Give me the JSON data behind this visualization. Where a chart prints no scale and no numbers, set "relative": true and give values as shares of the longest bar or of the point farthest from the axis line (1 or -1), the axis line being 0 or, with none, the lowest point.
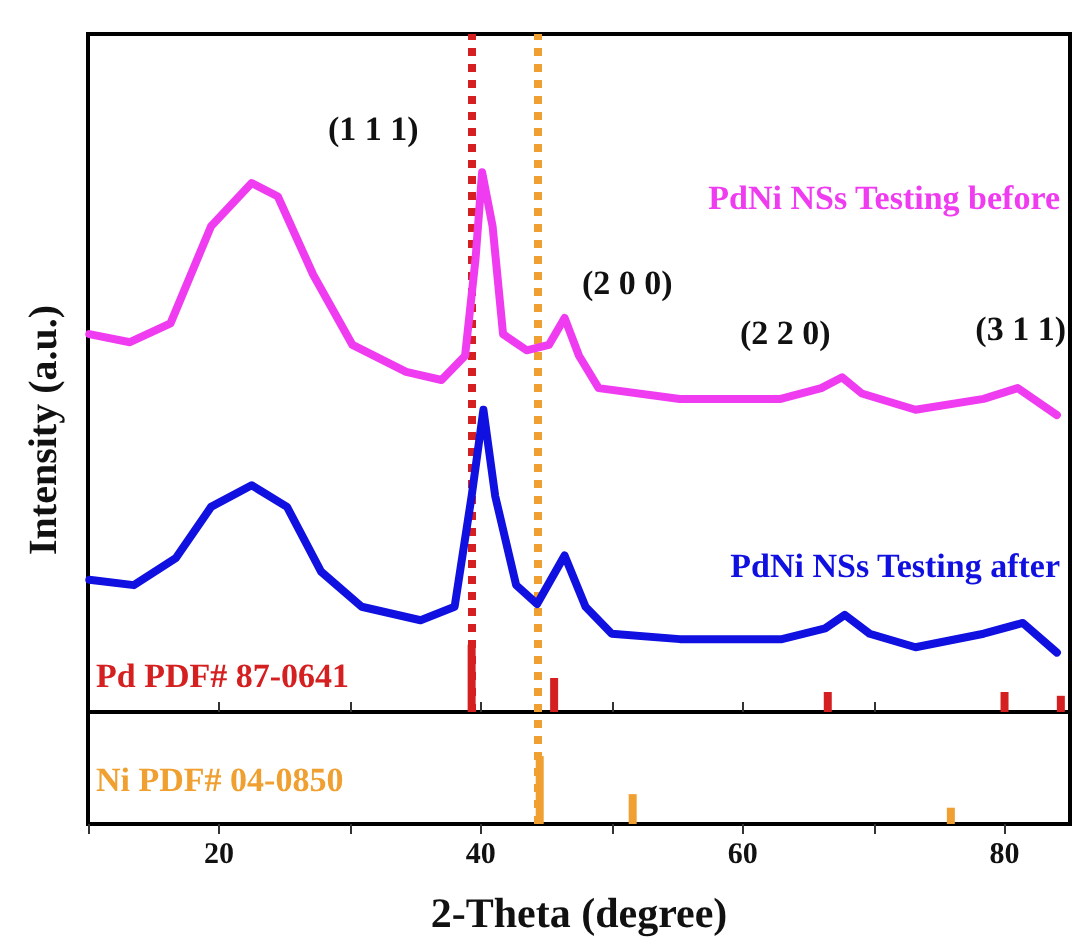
{
  "chart_data": [
    {
      "type": "line",
      "relative": true,
      "ylabel": "Intensity (a.u.)",
      "xlim": [
        10,
        85
      ],
      "xticks": [
        {
          "value": 20,
          "label": null
        },
        {
          "value": 30,
          "label": null
        },
        {
          "value": 40,
          "label": null
        },
        {
          "value": 50,
          "label": null
        },
        {
          "value": 60,
          "label": null
        },
        {
          "value": 70,
          "label": null
        },
        {
          "value": 80,
          "label": null
        }
      ],
      "tick_labels": false,
      "line_style": "solid",
      "annotations": [
        "(1 1 1)",
        "(2 0 0)",
        "(2 2 0)",
        "(3 1 1)"
      ],
      "ref_lines": [
        {
          "axis": "x",
          "value": 39.3,
          "color": "#d42020",
          "line_style": "dotted"
        },
        {
          "axis": "x",
          "value": 44.4,
          "color": "#f0a030",
          "line_style": "dotted"
        }
      ],
      "series": [
        {
          "name": "PdNi NSs Testing before",
          "color": "#f03cf0",
          "x": [
            10.1,
            13.2,
            16.3,
            19.4,
            22.5,
            24.5,
            27.2,
            30.2,
            34.3,
            37.0,
            38.8,
            39.6,
            40.1,
            40.9,
            41.7,
            43.5,
            45.2,
            46.4,
            47.5,
            49.0,
            55.2,
            62.9,
            66.0,
            67.6,
            69.1,
            73.2,
            78.4,
            81.0,
            84.0
          ],
          "values": [
            0.7,
            0.685,
            0.72,
            0.9,
            0.98,
            0.955,
            0.81,
            0.68,
            0.63,
            0.615,
            0.66,
            0.84,
            1.0,
            0.9,
            0.7,
            0.67,
            0.68,
            0.73,
            0.66,
            0.6,
            0.58,
            0.58,
            0.6,
            0.62,
            0.59,
            0.56,
            0.58,
            0.6,
            0.55
          ]
        },
        {
          "name": "PdNi NSs Testing after",
          "color": "#1010e0",
          "x": [
            10.1,
            13.5,
            16.7,
            19.4,
            22.5,
            25.2,
            27.8,
            30.9,
            35.4,
            38.0,
            39.3,
            40.2,
            41.1,
            42.7,
            44.3,
            46.4,
            48.0,
            50.0,
            55.2,
            63.0,
            66.3,
            67.8,
            69.7,
            73.2,
            78.4,
            81.4,
            84.0
          ],
          "values": [
            0.245,
            0.235,
            0.285,
            0.38,
            0.42,
            0.38,
            0.26,
            0.195,
            0.17,
            0.195,
            0.4,
            0.56,
            0.4,
            0.235,
            0.2,
            0.29,
            0.195,
            0.145,
            0.135,
            0.135,
            0.155,
            0.18,
            0.145,
            0.12,
            0.145,
            0.165,
            0.11
          ]
        },
        {
          "type": "bar",
          "name": "Pd PDF# 87-0641",
          "color": "#d42020",
          "x": [
            39.3,
            45.6,
            66.5,
            80.0,
            84.3
          ],
          "values": [
            0.125,
            0.063,
            0.037,
            0.037,
            0.03
          ]
        }
      ]
    },
    {
      "type": "bar",
      "relative": true,
      "xlabel": "2-Theta (degree)",
      "xlim": [
        10,
        85
      ],
      "xticks": [
        {
          "value": 10,
          "label": null
        },
        20,
        {
          "value": 30,
          "label": null
        },
        40,
        {
          "value": 50,
          "label": null
        },
        60,
        {
          "value": 70,
          "label": null
        },
        80
      ],
      "tick_labels": "x",
      "ref_lines": [
        {
          "axis": "x",
          "value": 44.4,
          "color": "#f0a030",
          "line_style": "dotted"
        }
      ],
      "series": [
        {
          "name": "Ni PDF# 04-0850",
          "color": "#f0a030",
          "x": [
            44.5,
            51.6,
            75.9
          ],
          "values": [
            1,
            0.44,
            0.24
          ]
        }
      ]
    }
  ]
}
